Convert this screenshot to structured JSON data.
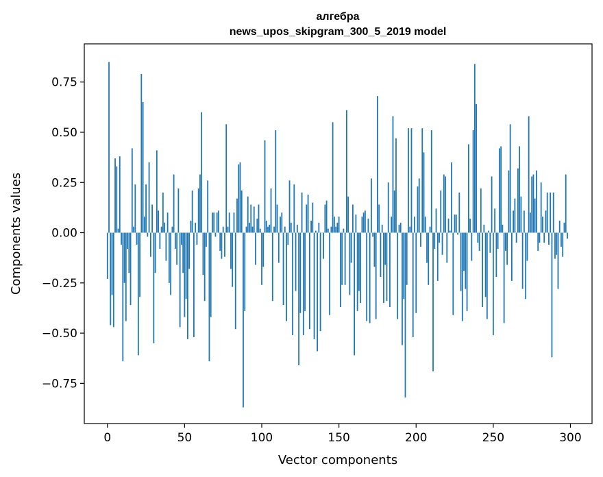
{
  "chart_data": {
    "type": "bar",
    "title": "алгебра",
    "subtitle": "news_upos_skipgram_300_5_2019 model",
    "xlabel": "Vector components",
    "ylabel": "Components values",
    "xlim": [
      -15,
      314
    ],
    "ylim": [
      -0.95,
      0.94
    ],
    "xticks": [
      0,
      50,
      100,
      150,
      200,
      250,
      300
    ],
    "yticks": [
      -0.75,
      -0.5,
      -0.25,
      0.0,
      0.25,
      0.5,
      0.75
    ],
    "xtick_labels": [
      "0",
      "50",
      "100",
      "150",
      "200",
      "250",
      "300"
    ],
    "ytick_labels": [
      "−0.75",
      "−0.50",
      "−0.25",
      "0.00",
      "0.25",
      "0.50",
      "0.75"
    ],
    "bar_color": "#1f77b4",
    "values": [
      -0.23,
      0.85,
      -0.46,
      -0.31,
      -0.47,
      0.37,
      0.33,
      0.02,
      0.38,
      -0.06,
      -0.64,
      -0.25,
      -0.44,
      -0.08,
      -0.2,
      -0.36,
      0.42,
      0.03,
      0.24,
      -0.06,
      -0.61,
      -0.32,
      0.79,
      0.65,
      0.08,
      0.24,
      -0.02,
      0.35,
      -0.12,
      0.14,
      -0.55,
      -0.2,
      0.41,
      0.11,
      -0.08,
      0.03,
      0.2,
      0.05,
      -0.14,
      0.1,
      -0.25,
      -0.31,
      0.03,
      0.29,
      -0.08,
      -0.16,
      0.22,
      -0.47,
      -0.06,
      -0.2,
      -0.42,
      -0.33,
      -0.53,
      -0.18,
      0.06,
      0.21,
      -0.52,
      0.05,
      -0.06,
      0.22,
      0.29,
      0.6,
      -0.21,
      -0.34,
      -0.07,
      0.26,
      -0.64,
      -0.42,
      0.1,
      0.1,
      -0.02,
      0.1,
      0.11,
      -0.09,
      -0.13,
      0.03,
      -0.12,
      0.54,
      0.03,
      0.1,
      -0.18,
      -0.27,
      0.1,
      -0.48,
      0.17,
      0.34,
      0.35,
      0.21,
      -0.87,
      -0.39,
      0.03,
      0.18,
      0.05,
      0.14,
      0.03,
      0.13,
      -0.16,
      0.07,
      0.14,
      0.02,
      -0.26,
      -0.17,
      0.46,
      0.06,
      0.03,
      0.04,
      0.22,
      -0.34,
      0.03,
      0.51,
      0.14,
      -0.15,
      0.08,
      0.1,
      -0.36,
      0.03,
      -0.44,
      -0.06,
      0.26,
      0.05,
      -0.51,
      0.24,
      -0.29,
      0.04,
      -0.66,
      -0.4,
      0.2,
      -0.51,
      -0.39,
      0.14,
      0.19,
      -0.48,
      0.06,
      0.15,
      -0.53,
      0.01,
      -0.59,
      0.05,
      -0.49,
      0.0,
      -0.13,
      0.14,
      0.16,
      0.02,
      -0.41,
      0.03,
      0.55,
      0.08,
      0.03,
      0.05,
      0.08,
      -0.37,
      -0.26,
      0.02,
      -0.26,
      0.61,
      0.18,
      -0.31,
      -0.15,
      0.14,
      -0.61,
      0.09,
      -0.39,
      -0.29,
      -0.35,
      0.08,
      0.1,
      0.11,
      -0.44,
      0.07,
      -0.45,
      0.27,
      -0.02,
      -0.17,
      -0.43,
      0.68,
      0.14,
      -0.22,
      0.04,
      -0.35,
      -0.16,
      -0.34,
      0.25,
      -0.37,
      0.08,
      0.58,
      0.21,
      0.47,
      -0.43,
      0.04,
      0.05,
      -0.56,
      -0.33,
      -0.82,
      -0.26,
      0.52,
      0.03,
      0.52,
      -0.52,
      0.08,
      -0.4,
      0.23,
      0.27,
      -0.07,
      0.52,
      0.4,
      0.08,
      -0.15,
      -0.26,
      0.03,
      0.51,
      -0.69,
      -0.08,
      0.12,
      -0.24,
      -0.05,
      0.21,
      -0.11,
      0.29,
      0.28,
      -0.15,
      0.07,
      0.01,
      0.35,
      -0.41,
      0.09,
      0.09,
      -0.01,
      0.2,
      -0.29,
      -0.44,
      -0.19,
      -0.28,
      -0.39,
      0.44,
      0.07,
      -0.14,
      0.51,
      0.84,
      0.64,
      -0.05,
      -0.09,
      0.22,
      -0.37,
      0.04,
      -0.32,
      -0.43,
      0.01,
      -0.1,
      0.28,
      -0.51,
      0.12,
      -0.22,
      -0.08,
      0.42,
      0.43,
      0.04,
      -0.45,
      -0.09,
      -0.16,
      0.31,
      0.54,
      -0.24,
      0.11,
      0.17,
      -0.05,
      0.32,
      0.43,
      0.18,
      -0.28,
      0.11,
      -0.33,
      -0.14,
      0.58,
      0.1,
      0.28,
      0.29,
      0.17,
      0.31,
      -0.09,
      -0.05,
      0.25,
      0.08,
      -0.05,
      0.11,
      0.2,
      -0.06,
      0.2,
      -0.62,
      0.2,
      -0.13,
      -0.11,
      -0.28,
      0.06,
      -0.07,
      -0.12,
      0.05,
      0.29,
      -0.03
    ]
  }
}
